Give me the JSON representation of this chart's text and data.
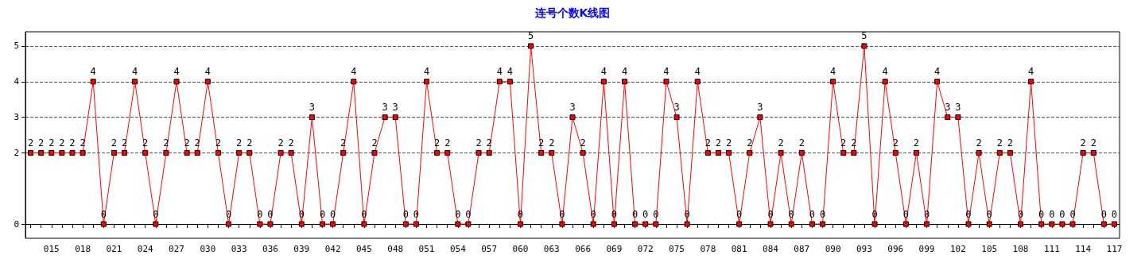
{
  "chart_data": {
    "type": "line",
    "title": "连号个数K线图",
    "categories": [
      null,
      null,
      "015",
      null,
      null,
      "018",
      null,
      null,
      "021",
      null,
      null,
      "024",
      null,
      null,
      "027",
      null,
      null,
      "030",
      null,
      null,
      "033",
      null,
      null,
      "036",
      null,
      null,
      "039",
      null,
      null,
      "042",
      null,
      null,
      "045",
      null,
      null,
      "048",
      null,
      null,
      "051",
      null,
      null,
      "054",
      null,
      null,
      "057",
      null,
      null,
      "060",
      null,
      null,
      "063",
      null,
      null,
      "066",
      null,
      null,
      "069",
      null,
      null,
      "072",
      null,
      null,
      "075",
      null,
      null,
      "078",
      null,
      null,
      "081",
      null,
      null,
      "084",
      null,
      null,
      "087",
      null,
      null,
      "090",
      null,
      null,
      "093",
      null,
      null,
      "096",
      null,
      null,
      "099",
      null,
      null,
      "102",
      null,
      null,
      "105",
      null,
      null,
      "108",
      null,
      null,
      "111",
      null,
      null,
      "114",
      null,
      null,
      "117"
    ],
    "series": [
      {
        "color": "#ff0000",
        "values": [
          2,
          2,
          2,
          2,
          2,
          2,
          4,
          0,
          2,
          2,
          4,
          2,
          0,
          2,
          4,
          2,
          2,
          4,
          2,
          0,
          2,
          2,
          0,
          0,
          2,
          2,
          0,
          3,
          0,
          0,
          2,
          4,
          0,
          2,
          3,
          3,
          0,
          0,
          4,
          2,
          2,
          0,
          0,
          2,
          2,
          4,
          4,
          0,
          5,
          2,
          2,
          0,
          3,
          2,
          0,
          4,
          0,
          4,
          0,
          0,
          0,
          4,
          3,
          0,
          4,
          2,
          2,
          2,
          0,
          2,
          3,
          0,
          2,
          0,
          2,
          0,
          0,
          4,
          2,
          2,
          5,
          0,
          4,
          2,
          0,
          2,
          0,
          4,
          3,
          3,
          0,
          2,
          0,
          2,
          2,
          0,
          4,
          0,
          0,
          0,
          0,
          2,
          2,
          0,
          0
        ]
      }
    ],
    "ylim": [
      -0.4,
      5.4
    ],
    "yticks": [
      0,
      2,
      3,
      4,
      5
    ],
    "grid": "y",
    "marker": "square",
    "line_style": "solid",
    "data_labels": true
  }
}
